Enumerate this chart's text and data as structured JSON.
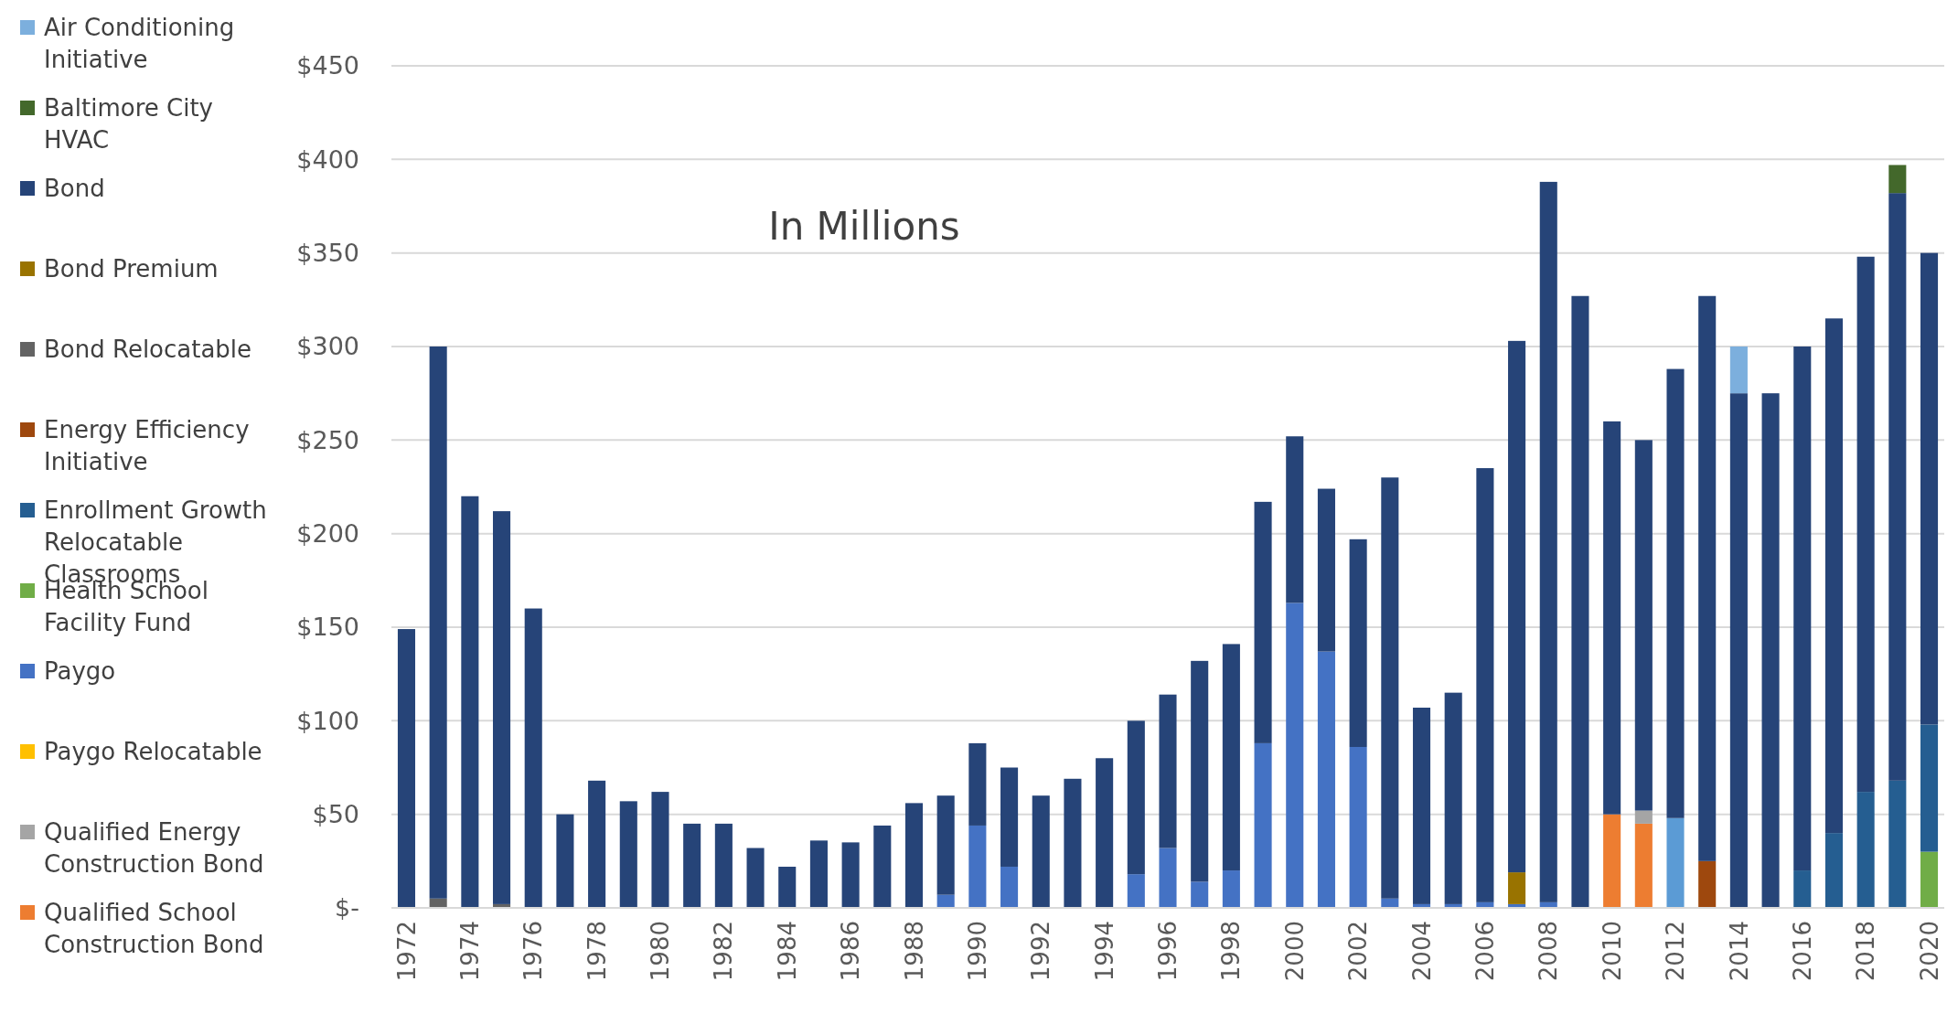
{
  "chart_data": {
    "type": "bar",
    "stacked": true,
    "annotations": [
      {
        "text": "In Millions"
      }
    ],
    "categories": [
      "1972",
      null,
      "1974",
      null,
      "1976",
      null,
      "1978",
      null,
      "1980",
      null,
      "1982",
      null,
      "1984",
      null,
      "1986",
      null,
      "1988",
      null,
      "1990",
      null,
      "1992",
      null,
      "1994",
      null,
      "1996",
      null,
      "1998",
      null,
      "2000",
      null,
      "2002",
      null,
      "2004",
      null,
      "2006",
      null,
      "2008",
      null,
      "2010",
      null,
      "2012",
      null,
      "2014",
      null,
      "2016",
      null,
      "2018",
      null,
      "2020"
    ],
    "ylim": [
      0,
      450
    ],
    "yticks": [
      {
        "value": 0,
        "label": "$-"
      },
      {
        "value": 50,
        "label": "$50"
      },
      {
        "value": 100,
        "label": "$100"
      },
      {
        "value": 150,
        "label": "$150"
      },
      {
        "value": 200,
        "label": "$200"
      },
      {
        "value": 250,
        "label": "$250"
      },
      {
        "value": 300,
        "label": "$300"
      },
      {
        "value": 350,
        "label": "$350"
      },
      {
        "value": 400,
        "label": "$400"
      },
      {
        "value": 450,
        "label": "$450"
      }
    ],
    "grid": "y",
    "legend": "left",
    "series": [
      {
        "name": "Bond Relocatable",
        "color": "#636363",
        "values": [
          null,
          5,
          null,
          2,
          null,
          null,
          null,
          null,
          null,
          null,
          null,
          null,
          null,
          null,
          null,
          null,
          null,
          null,
          null,
          null,
          null,
          null,
          null,
          null,
          null,
          null,
          null,
          null,
          null,
          null,
          null,
          null,
          null,
          null,
          null,
          null,
          null,
          null,
          null,
          null,
          null,
          null,
          null,
          null,
          null,
          null,
          null,
          null,
          null
        ]
      },
      {
        "name": "Paygo",
        "color": "#4472c4",
        "values": [
          null,
          null,
          null,
          null,
          null,
          null,
          null,
          null,
          null,
          null,
          null,
          null,
          null,
          null,
          null,
          null,
          null,
          7,
          44,
          22,
          null,
          null,
          null,
          18,
          32,
          14,
          20,
          88,
          163,
          137,
          86,
          5,
          2,
          2,
          3,
          2,
          3,
          null,
          null,
          null,
          null,
          null,
          null,
          null,
          null,
          null,
          null,
          null,
          null
        ]
      },
      {
        "name": "Bond Premium",
        "color": "#997300",
        "values": [
          null,
          null,
          null,
          null,
          null,
          null,
          null,
          null,
          null,
          null,
          null,
          null,
          null,
          null,
          null,
          null,
          null,
          null,
          null,
          null,
          null,
          null,
          null,
          null,
          null,
          null,
          null,
          null,
          null,
          null,
          null,
          null,
          null,
          null,
          null,
          17,
          null,
          null,
          null,
          null,
          null,
          null,
          null,
          null,
          null,
          null,
          null,
          null,
          null
        ]
      },
      {
        "name": "Qualified School Construction Bond",
        "color": "#ed7d31",
        "values": [
          null,
          null,
          null,
          null,
          null,
          null,
          null,
          null,
          null,
          null,
          null,
          null,
          null,
          null,
          null,
          null,
          null,
          null,
          null,
          null,
          null,
          null,
          null,
          null,
          null,
          null,
          null,
          null,
          null,
          null,
          null,
          null,
          null,
          null,
          null,
          null,
          null,
          null,
          50,
          45,
          null,
          null,
          null,
          null,
          null,
          null,
          null,
          null,
          null
        ]
      },
      {
        "name": "Qualified Energy Construction Bond",
        "color": "#a5a5a5",
        "values": [
          null,
          null,
          null,
          null,
          null,
          null,
          null,
          null,
          null,
          null,
          null,
          null,
          null,
          null,
          null,
          null,
          null,
          null,
          null,
          null,
          null,
          null,
          null,
          null,
          null,
          null,
          null,
          null,
          null,
          null,
          null,
          null,
          null,
          null,
          null,
          null,
          null,
          null,
          null,
          7,
          null,
          null,
          null,
          null,
          null,
          null,
          null,
          null,
          null
        ]
      },
      {
        "color": "#5b9bd5",
        "values": [
          null,
          null,
          null,
          null,
          null,
          null,
          null,
          null,
          null,
          null,
          null,
          null,
          null,
          null,
          null,
          null,
          null,
          null,
          null,
          null,
          null,
          null,
          null,
          null,
          null,
          null,
          null,
          null,
          null,
          null,
          null,
          null,
          null,
          null,
          null,
          null,
          null,
          null,
          null,
          null,
          48,
          null,
          null,
          null,
          null,
          null,
          null,
          null,
          null
        ]
      },
      {
        "name": "Energy Efficiency Initiative",
        "color": "#9e480e",
        "values": [
          null,
          null,
          null,
          null,
          null,
          null,
          null,
          null,
          null,
          null,
          null,
          null,
          null,
          null,
          null,
          null,
          null,
          null,
          null,
          null,
          null,
          null,
          null,
          null,
          null,
          null,
          null,
          null,
          null,
          null,
          null,
          null,
          null,
          null,
          null,
          null,
          null,
          null,
          null,
          null,
          null,
          25,
          null,
          null,
          null,
          null,
          null,
          null,
          null
        ]
      },
      {
        "name": "Health School Facility Fund",
        "color": "#70ad47",
        "values": [
          null,
          null,
          null,
          null,
          null,
          null,
          null,
          null,
          null,
          null,
          null,
          null,
          null,
          null,
          null,
          null,
          null,
          null,
          null,
          null,
          null,
          null,
          null,
          null,
          null,
          null,
          null,
          null,
          null,
          null,
          null,
          null,
          null,
          null,
          null,
          null,
          null,
          null,
          null,
          null,
          null,
          null,
          null,
          null,
          null,
          null,
          null,
          null,
          30
        ]
      },
      {
        "name": "Enrollment Growth Relocatable Classrooms",
        "color": "#255e91",
        "values": [
          null,
          null,
          null,
          null,
          null,
          null,
          null,
          null,
          null,
          null,
          null,
          null,
          null,
          null,
          null,
          null,
          null,
          null,
          null,
          null,
          null,
          null,
          null,
          null,
          null,
          null,
          null,
          null,
          null,
          null,
          null,
          null,
          null,
          null,
          null,
          null,
          null,
          null,
          null,
          null,
          null,
          null,
          null,
          null,
          20,
          40,
          62,
          68,
          68
        ]
      },
      {
        "name": "Paygo Relocatable",
        "color": "#ffc000",
        "values": [
          null,
          null,
          null,
          null,
          null,
          null,
          null,
          null,
          null,
          null,
          null,
          null,
          null,
          null,
          null,
          null,
          null,
          null,
          null,
          null,
          null,
          null,
          null,
          null,
          null,
          null,
          null,
          null,
          null,
          null,
          null,
          null,
          null,
          null,
          null,
          null,
          null,
          null,
          null,
          null,
          null,
          null,
          null,
          null,
          null,
          null,
          null,
          null,
          null
        ]
      },
      {
        "name": "Bond",
        "color": "#264478",
        "values": [
          149,
          295,
          220,
          210,
          160,
          50,
          68,
          57,
          62,
          45,
          45,
          32,
          22,
          36,
          35,
          44,
          56,
          53,
          44,
          53,
          60,
          69,
          80,
          82,
          82,
          118,
          121,
          129,
          89,
          87,
          111,
          225,
          105,
          113,
          232,
          284,
          385,
          327,
          210,
          198,
          240,
          302,
          275,
          275,
          280,
          275,
          286,
          314,
          252
        ]
      },
      {
        "name": "Air Conditioning Initiative",
        "color": "#7cafdd",
        "values": [
          null,
          null,
          null,
          null,
          null,
          null,
          null,
          null,
          null,
          null,
          null,
          null,
          null,
          null,
          null,
          null,
          null,
          null,
          null,
          null,
          null,
          null,
          null,
          null,
          null,
          null,
          null,
          null,
          null,
          null,
          null,
          null,
          null,
          null,
          null,
          null,
          null,
          null,
          null,
          null,
          null,
          null,
          25,
          null,
          null,
          null,
          null,
          null,
          null
        ]
      },
      {
        "name": "Baltimore City HVAC",
        "color": "#43682b",
        "values": [
          null,
          null,
          null,
          null,
          null,
          null,
          null,
          null,
          null,
          null,
          null,
          null,
          null,
          null,
          null,
          null,
          null,
          null,
          null,
          null,
          null,
          null,
          null,
          null,
          null,
          null,
          null,
          null,
          null,
          null,
          null,
          null,
          null,
          null,
          null,
          null,
          null,
          null,
          null,
          null,
          null,
          null,
          null,
          null,
          null,
          null,
          null,
          15,
          null
        ]
      }
    ]
  }
}
